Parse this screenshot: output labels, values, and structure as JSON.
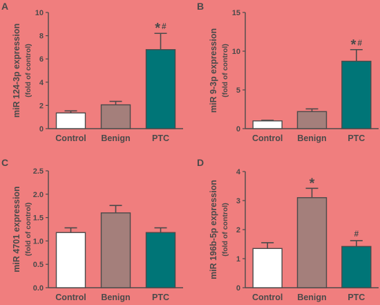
{
  "chart_data": [
    {
      "panel": "A",
      "type": "bar",
      "categories": [
        "Control",
        "Benign",
        "PTC"
      ],
      "values": [
        1.35,
        2.05,
        6.8
      ],
      "errors": [
        0.18,
        0.3,
        1.4
      ],
      "annotations": [
        "",
        "",
        "*#"
      ],
      "colors": [
        "#ffffff",
        "#a47f7b",
        "#007577"
      ],
      "ylabel": "miR 124-3p expression",
      "ylabel_sub": "(fold of control)",
      "ylim": [
        0,
        10
      ],
      "yticks": [
        "0",
        "2",
        "4",
        "6",
        "8",
        "10"
      ]
    },
    {
      "panel": "B",
      "type": "bar",
      "categories": [
        "Control",
        "Benign",
        "PTC"
      ],
      "values": [
        1.0,
        2.2,
        8.7
      ],
      "errors": [
        0.08,
        0.35,
        1.5
      ],
      "annotations": [
        "",
        "",
        "*#"
      ],
      "colors": [
        "#ffffff",
        "#a47f7b",
        "#007577"
      ],
      "ylabel": "miR 9-3p expression",
      "ylabel_sub": "(fold of control)",
      "ylim": [
        0,
        15
      ],
      "yticks": [
        "0",
        "5",
        "10",
        "15"
      ]
    },
    {
      "panel": "C",
      "type": "bar",
      "categories": [
        "Control",
        "Benign",
        "PTC"
      ],
      "values": [
        1.18,
        1.6,
        1.18
      ],
      "errors": [
        0.1,
        0.16,
        0.1
      ],
      "annotations": [
        "",
        "",
        ""
      ],
      "colors": [
        "#ffffff",
        "#a47f7b",
        "#007577"
      ],
      "ylabel": "miR 4701 expression",
      "ylabel_sub": "(fold of control)",
      "ylim": [
        0,
        2.5
      ],
      "yticks": [
        "0.0",
        "0.5",
        "1.0",
        "1.5",
        "2.0",
        "2.5"
      ]
    },
    {
      "panel": "D",
      "type": "bar",
      "categories": [
        "Control",
        "Benign",
        "PTC"
      ],
      "values": [
        1.35,
        3.1,
        1.42
      ],
      "errors": [
        0.2,
        0.32,
        0.2
      ],
      "annotations": [
        "",
        "*",
        "#"
      ],
      "colors": [
        "#ffffff",
        "#a47f7b",
        "#007577"
      ],
      "ylabel": "miR 196b-5p expression",
      "ylabel_sub": "(fold of control)",
      "ylim": [
        0,
        4
      ],
      "yticks": [
        "0",
        "1",
        "2",
        "3",
        "4"
      ]
    }
  ]
}
